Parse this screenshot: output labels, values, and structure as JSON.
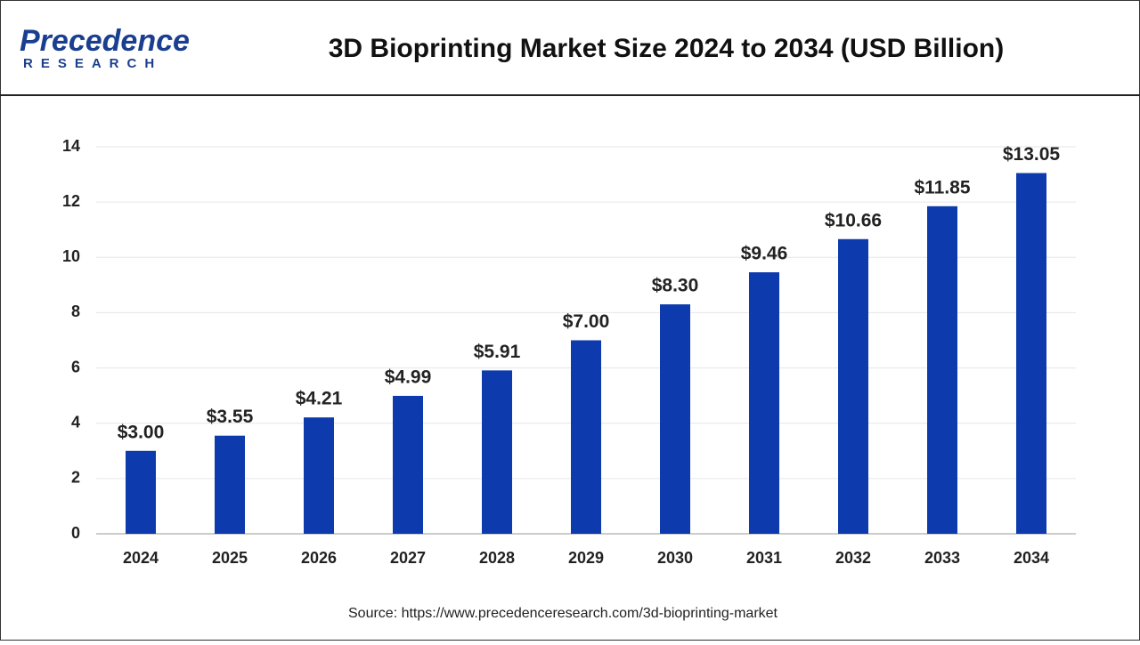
{
  "logo": {
    "name": "Precedence",
    "tagline": "RESEARCH"
  },
  "chart_data": {
    "type": "bar",
    "title": "3D Bioprinting Market Size 2024 to 2034 (USD Billion)",
    "categories": [
      "2024",
      "2025",
      "2026",
      "2027",
      "2028",
      "2029",
      "2030",
      "2031",
      "2032",
      "2033",
      "2034"
    ],
    "values": [
      3.0,
      3.55,
      4.21,
      4.99,
      5.91,
      7.0,
      8.3,
      9.46,
      10.66,
      11.85,
      13.05
    ],
    "value_labels": [
      "$3.00",
      "$3.55",
      "$4.21",
      "$4.99",
      "$5.91",
      "$7.00",
      "$8.30",
      "$9.46",
      "$10.66",
      "$11.85",
      "$13.05"
    ],
    "color": "#0d3aad",
    "ylim": [
      0,
      14
    ],
    "yticks": [
      0,
      2,
      4,
      6,
      8,
      10,
      12,
      14
    ],
    "grid": true,
    "source": "Source: https://www.precedenceresearch.com/3d-bioprinting-market"
  }
}
